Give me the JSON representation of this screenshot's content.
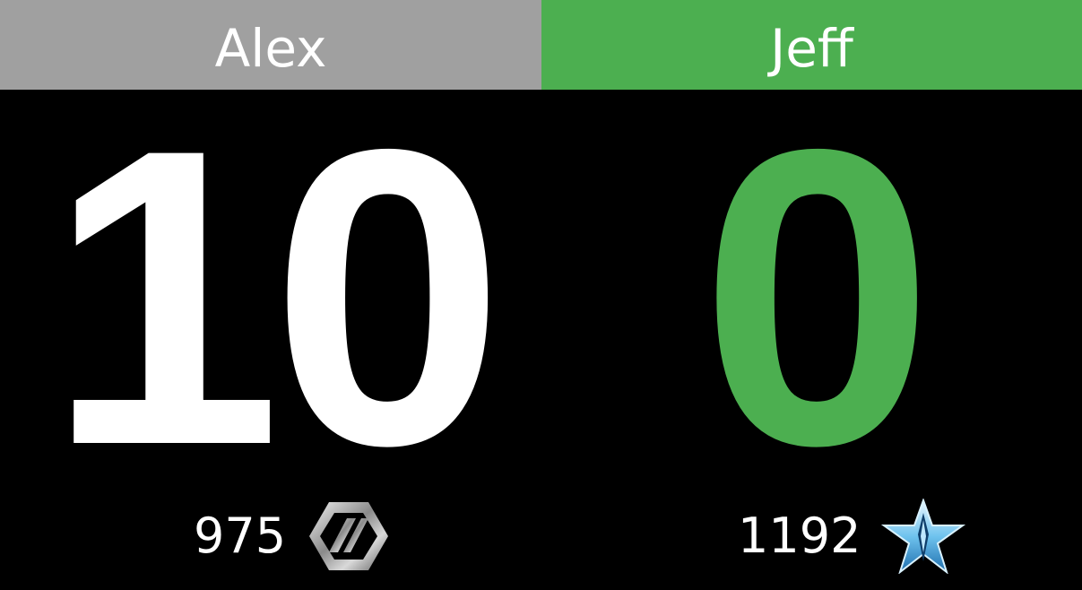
{
  "players": [
    {
      "name": "Alex",
      "score": "10",
      "rating": "975",
      "rank_icon": "hexagon-rank-icon",
      "header_color": "#a0a0a0",
      "score_color": "#ffffff"
    },
    {
      "name": "Jeff",
      "score": "0",
      "rating": "1192",
      "rank_icon": "star-rank-icon",
      "header_color": "#4caf50",
      "score_color": "#4caf50"
    }
  ]
}
